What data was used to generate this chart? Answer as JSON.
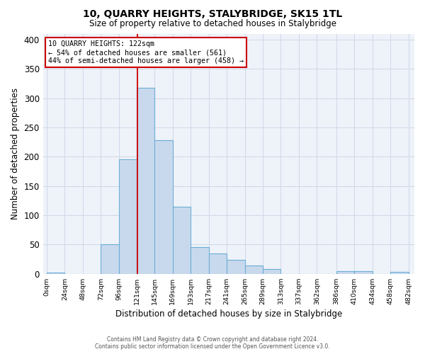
{
  "title": "10, QUARRY HEIGHTS, STALYBRIDGE, SK15 1TL",
  "subtitle": "Size of property relative to detached houses in Stalybridge",
  "xlabel": "Distribution of detached houses by size in Stalybridge",
  "ylabel": "Number of detached properties",
  "bar_color": "#c9d9ed",
  "bar_edge_color": "#6baed6",
  "bin_edges": [
    0,
    24,
    48,
    72,
    96,
    120,
    144,
    168,
    192,
    216,
    240,
    264,
    288,
    312,
    336,
    360,
    386,
    410,
    434,
    458,
    482
  ],
  "bar_heights": [
    2,
    0,
    0,
    50,
    196,
    318,
    228,
    114,
    46,
    35,
    24,
    14,
    8,
    0,
    0,
    0,
    5,
    4,
    0,
    3
  ],
  "x_tick_labels": [
    "0sqm",
    "24sqm",
    "48sqm",
    "72sqm",
    "96sqm",
    "121sqm",
    "145sqm",
    "169sqm",
    "193sqm",
    "217sqm",
    "241sqm",
    "265sqm",
    "289sqm",
    "313sqm",
    "337sqm",
    "362sqm",
    "386sqm",
    "410sqm",
    "434sqm",
    "458sqm",
    "482sqm"
  ],
  "ylim": [
    0,
    410
  ],
  "xlim": [
    -5,
    490
  ],
  "vline_x": 121,
  "vline_color": "#cc0000",
  "annotation_title": "10 QUARRY HEIGHTS: 122sqm",
  "annotation_line1": "← 54% of detached houses are smaller (561)",
  "annotation_line2": "44% of semi-detached houses are larger (458) →",
  "annotation_box_color": "#cc0000",
  "annotation_box_fill": "#ffffff",
  "grid_color": "#d0d8e8",
  "background_color": "#eef2f9",
  "footer_line1": "Contains HM Land Registry data © Crown copyright and database right 2024.",
  "footer_line2": "Contains public sector information licensed under the Open Government Licence v3.0."
}
